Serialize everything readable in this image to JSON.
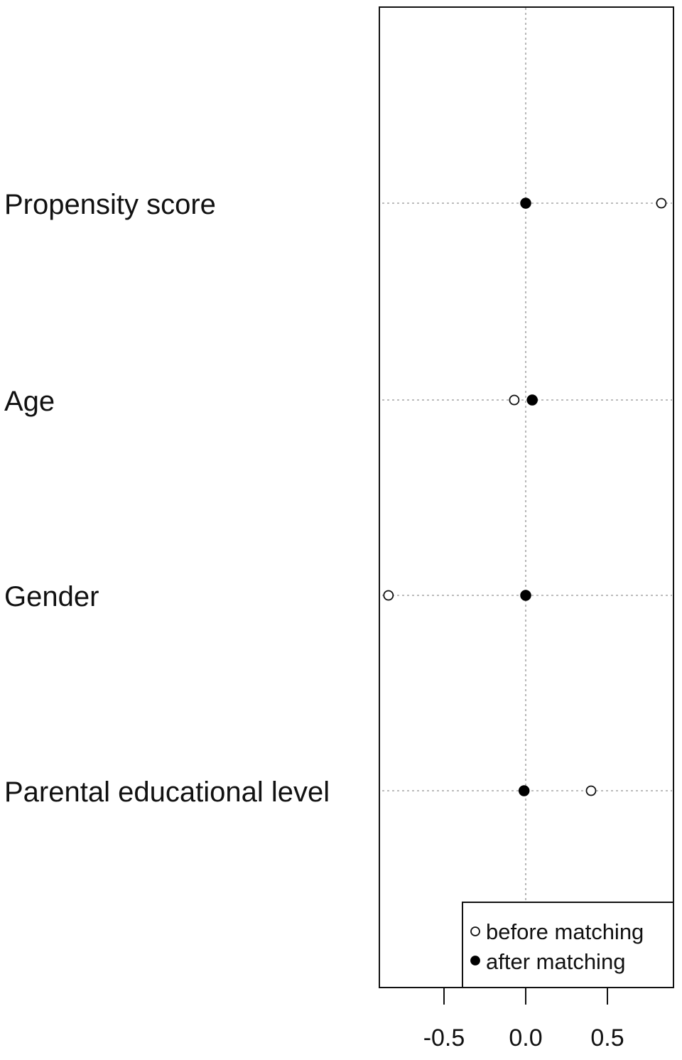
{
  "chart_data": {
    "type": "scatter",
    "title": "",
    "xlabel": "",
    "ylabel": "",
    "categories": [
      "Propensity score",
      "Age",
      "Gender",
      "Parental educational level"
    ],
    "series": [
      {
        "name": "before matching",
        "marker": "open-circle",
        "values": [
          0.83,
          -0.07,
          -0.84,
          0.4
        ]
      },
      {
        "name": "after matching",
        "marker": "filled-circle",
        "values": [
          0.0,
          0.04,
          0.0,
          -0.01
        ]
      }
    ],
    "xlim": [
      -0.9,
      0.9
    ],
    "x_ticks": [
      -0.5,
      0.0,
      0.5
    ],
    "x_tick_labels": [
      "-0.5",
      "0.0",
      "0.5"
    ],
    "reference_line": 0,
    "grid": "dotted guide lines per row and at x = 0",
    "legend_position": "bottom-right"
  },
  "colors": {
    "axis": "#111111",
    "grid": "#a6a6a6",
    "marker_fill_after": "#000000",
    "marker_fill_before": "#ffffff"
  }
}
